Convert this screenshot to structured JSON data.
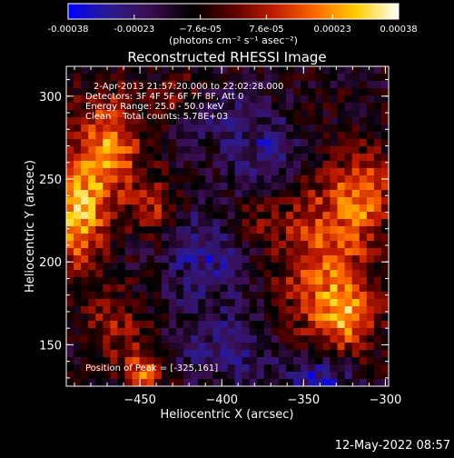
{
  "colorbar": {
    "tick_labels": [
      "-0.00038",
      "-0.00023",
      "−7.6e-05",
      "7.6e-05",
      "0.00023",
      "0.00038"
    ],
    "units_label": "(photons cm⁻² s⁻¹ asec⁻²)",
    "colormap": [
      "#0000ff",
      "#2b1b8f",
      "#3a0d4d",
      "#000000",
      "#5c0000",
      "#c21c00",
      "#ff6a00",
      "#ffd000",
      "#ffffff"
    ]
  },
  "chart_data": {
    "type": "heatmap",
    "title": "Reconstructed RHESSI Image",
    "xlabel": "Heliocentric X (arcsec)",
    "ylabel": "Heliocentric Y (arcsec)",
    "xlim": [
      -495,
      -298
    ],
    "ylim": [
      125,
      318
    ],
    "x_ticks": [
      -450,
      -400,
      -350,
      -300
    ],
    "y_ticks": [
      150,
      200,
      250,
      300
    ],
    "x_tick_labels": [
      "−450",
      "−400",
      "−350",
      "−300"
    ],
    "y_tick_labels": [
      "150",
      "200",
      "250",
      "300"
    ],
    "color_range": [
      -0.00038,
      0.00038
    ],
    "peak_position": [
      -325,
      161
    ],
    "annotations": [
      "2-Apr-2013 21:57:20.000 to 22:02:28.000",
      "Detectors: 3F 4F 5F 6F 7F 8F, Att 0",
      "Energy Range: 25.0 - 50.0 keV",
      "Clean    Total counts: 5.78E+03",
      "Position of Peak = [-325,161]"
    ],
    "blobs": [
      {
        "x": -470,
        "y": 268,
        "sx": 15,
        "sy": 24,
        "amp": 0.00032
      },
      {
        "x": -488,
        "y": 225,
        "sx": 12,
        "sy": 22,
        "amp": 0.00034
      },
      {
        "x": -440,
        "y": 232,
        "sx": 10,
        "sy": 12,
        "amp": 0.00018
      },
      {
        "x": -425,
        "y": 300,
        "sx": 12,
        "sy": 10,
        "amp": 0.00014
      },
      {
        "x": -465,
        "y": 160,
        "sx": 14,
        "sy": 16,
        "amp": 0.00016
      },
      {
        "x": -447,
        "y": 132,
        "sx": 8,
        "sy": 10,
        "amp": 0.0003
      },
      {
        "x": -338,
        "y": 200,
        "sx": 20,
        "sy": 42,
        "amp": 0.00026
      },
      {
        "x": -322,
        "y": 168,
        "sx": 12,
        "sy": 14,
        "amp": 0.00024
      },
      {
        "x": -313,
        "y": 240,
        "sx": 12,
        "sy": 18,
        "amp": 0.00024
      },
      {
        "x": -380,
        "y": 225,
        "sx": 12,
        "sy": 10,
        "amp": 0.0001
      },
      {
        "x": -410,
        "y": 205,
        "sx": 18,
        "sy": 18,
        "amp": -0.00016
      },
      {
        "x": -370,
        "y": 265,
        "sx": 18,
        "sy": 16,
        "amp": -0.00016
      },
      {
        "x": -395,
        "y": 150,
        "sx": 24,
        "sy": 16,
        "amp": -0.00013
      },
      {
        "x": -340,
        "y": 130,
        "sx": 15,
        "sy": 10,
        "amp": -0.00024
      },
      {
        "x": -405,
        "y": 290,
        "sx": 18,
        "sy": 12,
        "amp": -9e-05
      }
    ]
  },
  "footer": {
    "timestamp": "12-May-2022 08:57"
  }
}
